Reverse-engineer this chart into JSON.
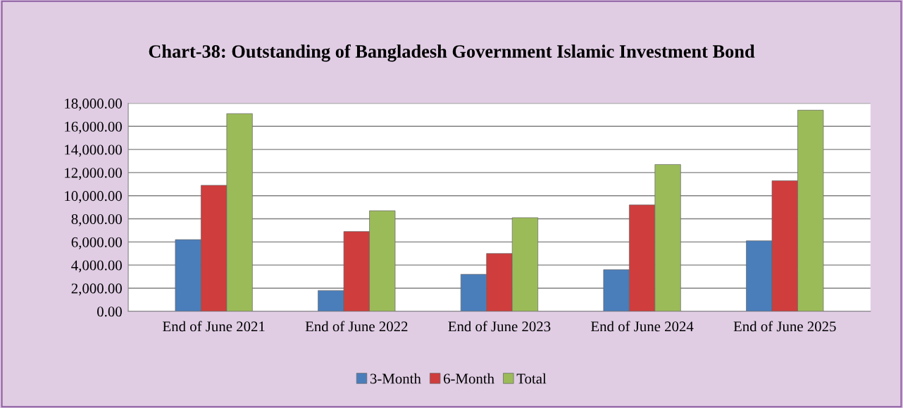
{
  "chart_data": {
    "type": "bar",
    "title": "Chart-38: Outstanding of Bangladesh Government Islamic Investment Bond",
    "categories": [
      "End of June 2021",
      "End of June 2022",
      "End of June 2023",
      "End of June 2024",
      "End of June 2025"
    ],
    "series": [
      {
        "name": "3-Month",
        "color": "#4a7ebb",
        "values": [
          6200,
          1800,
          3200,
          3600,
          6100
        ]
      },
      {
        "name": "6-Month",
        "color": "#cf3d3d",
        "values": [
          10900,
          6900,
          5000,
          9200,
          11300
        ]
      },
      {
        "name": "Total",
        "color": "#9bbb59",
        "values": [
          17100,
          8700,
          8100,
          12700,
          17400
        ]
      }
    ],
    "ylim": [
      0,
      18000
    ],
    "yticks": [
      {
        "value": 0,
        "label": "0.00"
      },
      {
        "value": 2000,
        "label": "2,000.00"
      },
      {
        "value": 4000,
        "label": "4,000.00"
      },
      {
        "value": 6000,
        "label": "6,000.00"
      },
      {
        "value": 8000,
        "label": "8,000.00"
      },
      {
        "value": 10000,
        "label": "10,000.00"
      },
      {
        "value": 12000,
        "label": "12,000.00"
      },
      {
        "value": 14000,
        "label": "14,000.00"
      },
      {
        "value": 16000,
        "label": "16,000.00"
      },
      {
        "value": 18000,
        "label": "18,000.00"
      }
    ],
    "grid": "y",
    "legend": "bottom"
  }
}
